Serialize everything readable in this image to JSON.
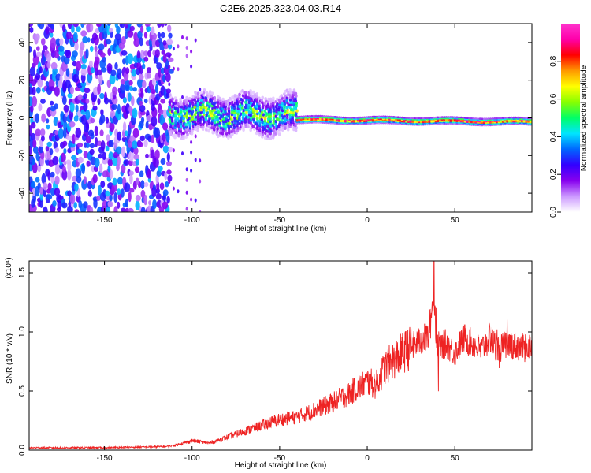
{
  "title": "C2E6.2025.323.04.03.R14",
  "chart_data": [
    {
      "type": "heatmap",
      "name": "spectrogram",
      "xlabel": "Height of straight line (km)",
      "ylabel": "Frequency (Hz)",
      "xlim": [
        -193,
        94
      ],
      "ylim": [
        -50,
        50
      ],
      "xticks": [
        -150,
        -100,
        -50,
        0,
        50
      ],
      "yticks": [
        -40,
        -20,
        0,
        20,
        40
      ],
      "xtick_labels": [
        "-150",
        "-100",
        "-50",
        "0",
        "50"
      ],
      "ytick_labels": [
        "-40",
        "-20",
        "0",
        "20",
        "40"
      ],
      "colorbar": {
        "label": "Normalized spectral amplitude",
        "range": [
          0.0,
          1.0
        ],
        "ticks": [
          0.0,
          0.2,
          0.4,
          0.6,
          0.8
        ],
        "tick_labels": [
          "0.0",
          "0.2",
          "0.4",
          "0.6",
          "0.8"
        ],
        "colors": [
          "#ffffff",
          "#cc99ff",
          "#8800ee",
          "#3300ff",
          "#0066ff",
          "#00e5ff",
          "#00ff66",
          "#88ff00",
          "#ffff00",
          "#ff9900",
          "#ff0000",
          "#ff00aa",
          "#ff33cc"
        ]
      },
      "regions": [
        {
          "description": "broadband noise",
          "x_range": [
            -193,
            -113
          ],
          "freq_range": [
            -50,
            50
          ],
          "amplitude": 0.15
        },
        {
          "description": "turbulent echo",
          "x_range": [
            -113,
            -40
          ],
          "freq_center": 2,
          "freq_halfwidth": 8,
          "amplitude": 0.45
        },
        {
          "description": "stable echo",
          "x_range": [
            -40,
            94
          ],
          "freq_center_start": -1,
          "freq_center_end": -2,
          "freq_halfwidth": 2,
          "amplitude": 0.9
        }
      ]
    },
    {
      "type": "line",
      "name": "snr",
      "xlabel": "Height of straight line (km)",
      "ylabel": "SNR (10 * v/v)",
      "scale_label": "(x10⁴)",
      "xlim": [
        -193,
        94
      ],
      "ylim": [
        0,
        1.6
      ],
      "xticks": [
        -150,
        -100,
        -50,
        0,
        50
      ],
      "yticks": [
        0.0,
        0.5,
        1.0,
        1.5
      ],
      "xtick_labels": [
        "-150",
        "-100",
        "-50",
        "0",
        "50"
      ],
      "ytick_labels": [
        "0.0",
        "0.5",
        "1.0",
        "1.5"
      ],
      "color": "#ee2222",
      "series": [
        {
          "name": "SNR",
          "x": [
            -193,
            -150,
            -115,
            -110,
            -100,
            -90,
            -80,
            -70,
            -60,
            -50,
            -40,
            -30,
            -20,
            -10,
            0,
            5,
            10,
            20,
            30,
            35,
            38,
            40,
            45,
            50,
            55,
            60,
            65,
            70,
            75,
            80,
            85,
            90,
            94
          ],
          "y": [
            0.02,
            0.02,
            0.03,
            0.04,
            0.08,
            0.06,
            0.11,
            0.16,
            0.21,
            0.26,
            0.28,
            0.34,
            0.4,
            0.48,
            0.58,
            0.55,
            0.7,
            0.82,
            0.92,
            0.96,
            1.3,
            0.88,
            0.9,
            0.82,
            0.95,
            0.9,
            0.85,
            0.95,
            0.85,
            0.9,
            0.88,
            0.86,
            0.89
          ]
        }
      ]
    }
  ]
}
